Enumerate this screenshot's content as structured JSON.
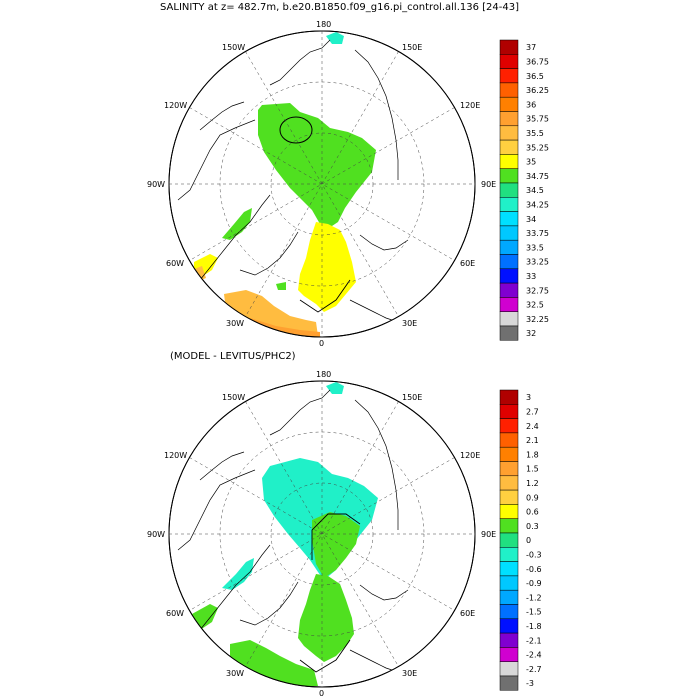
{
  "titles": {
    "top": "SALINITY at z= 482.7m, b.e20.B1850.f09_g16.pi_control.all.136 [24-43]",
    "bottom": "(MODEL - LEVITUS/PHC2)"
  },
  "map_labels": {
    "top": "180",
    "bottom": "0",
    "left": "90W",
    "right": "90E",
    "upper_left": "150W",
    "upper_right": "150E",
    "mid_upper_left": "120W",
    "mid_upper_right": "120E",
    "mid_lower_left": "60W",
    "mid_lower_right": "60E",
    "lower_left": "30W",
    "lower_right": "30E"
  },
  "colorbar_top": {
    "labels": [
      "37",
      "36.75",
      "36.5",
      "36.25",
      "36",
      "35.75",
      "35.5",
      "35.25",
      "35",
      "34.75",
      "34.5",
      "34.25",
      "34",
      "33.75",
      "33.5",
      "33.25",
      "33",
      "32.75",
      "32.5",
      "32.25",
      "32"
    ],
    "colors": [
      "#b00000",
      "#e00000",
      "#ff2000",
      "#ff6000",
      "#ff8000",
      "#ffa030",
      "#ffbc40",
      "#ffd040",
      "#ffff00",
      "#50e020",
      "#20e080",
      "#20f0c8",
      "#00e0ff",
      "#00c8ff",
      "#00a8ff",
      "#0070ff",
      "#0010ff",
      "#8000d0",
      "#d000d0",
      "#d8d8d8",
      "#707070"
    ]
  },
  "colorbar_bottom": {
    "labels": [
      "3",
      "2.7",
      "2.4",
      "2.1",
      "1.8",
      "1.5",
      "1.2",
      "0.9",
      "0.6",
      "0.3",
      "0",
      "-0.3",
      "-0.6",
      "-0.9",
      "-1.2",
      "-1.5",
      "-1.8",
      "-2.1",
      "-2.4",
      "-2.7",
      "-3"
    ],
    "colors": [
      "#b00000",
      "#e00000",
      "#ff2000",
      "#ff6000",
      "#ff8000",
      "#ffa030",
      "#ffbc40",
      "#ffd040",
      "#ffff00",
      "#50e020",
      "#20e080",
      "#20f0c8",
      "#00e0ff",
      "#00c8ff",
      "#00a8ff",
      "#0070ff",
      "#0010ff",
      "#8000d0",
      "#d000d0",
      "#d8d8d8",
      "#707070"
    ]
  },
  "field_colors": {
    "green": "#50e020",
    "yellow": "#ffff00",
    "orange": "#ffbc40",
    "dark_orange": "#ffa030",
    "cyan": "#20f0c8",
    "aqua": "#00e0ff"
  }
}
